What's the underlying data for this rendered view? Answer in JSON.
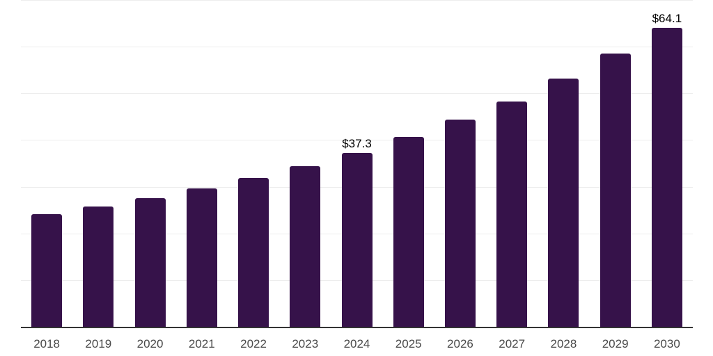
{
  "chart_data": {
    "type": "bar",
    "title": "",
    "categories": [
      "2018",
      "2019",
      "2020",
      "2021",
      "2022",
      "2023",
      "2024",
      "2025",
      "2026",
      "2027",
      "2028",
      "2029",
      "2030"
    ],
    "values": [
      24.1,
      25.8,
      27.6,
      29.7,
      31.9,
      34.4,
      37.3,
      40.6,
      44.4,
      48.3,
      53.1,
      58.5,
      64.1
    ],
    "data_labels": {
      "2024": "$37.3",
      "2030": "$64.1"
    },
    "xlabel": "",
    "ylabel": "",
    "ylim": [
      0,
      70
    ],
    "grid_step": 10,
    "grid": "horizontal-only",
    "legend": "none",
    "y_tick_labels": "none",
    "colors": {
      "bar": "#36124a",
      "axis_line": "#333333",
      "gridline": "#ededed",
      "tick_label": "#4a4a4a",
      "data_label": "#000000",
      "background": "#ffffff"
    }
  }
}
